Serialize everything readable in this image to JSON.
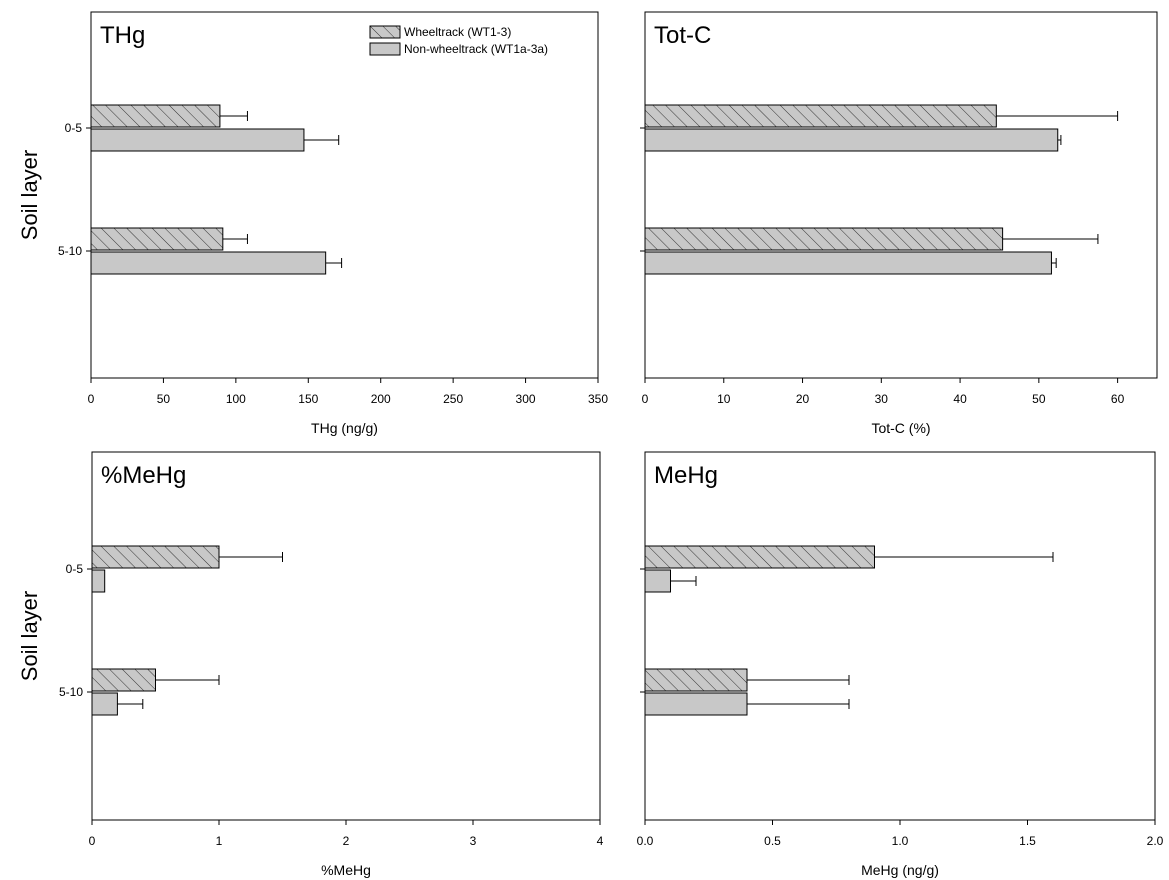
{
  "figure": {
    "ylabel": "Soil layer",
    "legend": {
      "placement": "top-right of first panel",
      "entries": [
        {
          "name": "Wheeltrack (WT1-3)",
          "pattern": "hatched",
          "color": "#c8c8c8"
        },
        {
          "name": "Non-wheeltrack (WT1a-3a)",
          "pattern": "solid",
          "color": "#c8c8c8"
        }
      ]
    }
  },
  "chart_data": [
    {
      "type": "bar",
      "orientation": "horizontal",
      "title": "THg",
      "xlabel": "THg (ng/g)",
      "categories": [
        "0-5",
        "5-10"
      ],
      "xlim": [
        0,
        350
      ],
      "xticks": [
        "0",
        "50",
        "100",
        "150",
        "200",
        "250",
        "300",
        "350"
      ],
      "series": [
        {
          "name": "Wheeltrack (WT1-3)",
          "values": [
            89,
            91
          ],
          "errors": [
            19,
            17
          ]
        },
        {
          "name": "Non-wheeltrack (WT1a-3a)",
          "values": [
            147,
            162
          ],
          "errors": [
            24,
            11
          ]
        }
      ]
    },
    {
      "type": "bar",
      "orientation": "horizontal",
      "title": "Tot-C",
      "xlabel": "Tot-C (%)",
      "categories": [
        "0-5",
        "5-10"
      ],
      "xlim": [
        0,
        65
      ],
      "xticks": [
        "0",
        "10",
        "20",
        "30",
        "40",
        "50",
        "60"
      ],
      "series": [
        {
          "name": "Wheeltrack (WT1-3)",
          "values": [
            44.6,
            45.4
          ],
          "errors": [
            15.4,
            12.1
          ]
        },
        {
          "name": "Non-wheeltrack (WT1a-3a)",
          "values": [
            52.4,
            51.6
          ],
          "errors": [
            0.4,
            0.6
          ]
        }
      ]
    },
    {
      "type": "bar",
      "orientation": "horizontal",
      "title": "%MeHg",
      "xlabel": "%MeHg",
      "categories": [
        "0-5",
        "5-10"
      ],
      "xlim": [
        0,
        4
      ],
      "xticks": [
        "0",
        "1",
        "2",
        "3",
        "4"
      ],
      "series": [
        {
          "name": "Wheeltrack (WT1-3)",
          "values": [
            1.0,
            0.5
          ],
          "errors": [
            0.5,
            0.5
          ]
        },
        {
          "name": "Non-wheeltrack (WT1a-3a)",
          "values": [
            0.1,
            0.2
          ],
          "errors": [
            0.0,
            0.2
          ]
        }
      ]
    },
    {
      "type": "bar",
      "orientation": "horizontal",
      "title": "MeHg",
      "xlabel": "MeHg (ng/g)",
      "categories": [
        "0-5",
        "5-10"
      ],
      "xlim": [
        0,
        2
      ],
      "xticks": [
        "0.0",
        "0.5",
        "1.0",
        "1.5",
        "2.0"
      ],
      "series": [
        {
          "name": "Wheeltrack (WT1-3)",
          "values": [
            0.9,
            0.4
          ],
          "errors": [
            0.7,
            0.4
          ]
        },
        {
          "name": "Non-wheeltrack (WT1a-3a)",
          "values": [
            0.1,
            0.4
          ],
          "errors": [
            0.1,
            0.4
          ]
        }
      ]
    }
  ]
}
